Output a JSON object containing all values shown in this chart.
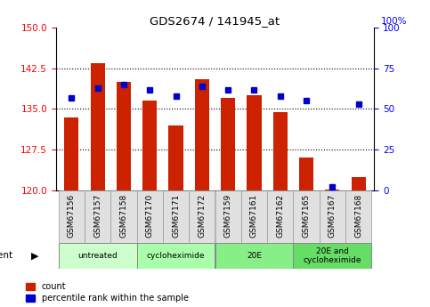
{
  "title": "GDS2674 / 141945_at",
  "samples": [
    "GSM67156",
    "GSM67157",
    "GSM67158",
    "GSM67170",
    "GSM67171",
    "GSM67172",
    "GSM67159",
    "GSM67161",
    "GSM67162",
    "GSM67165",
    "GSM67167",
    "GSM67168"
  ],
  "counts": [
    133.5,
    143.5,
    140.0,
    136.5,
    132.0,
    140.5,
    137.0,
    137.5,
    134.5,
    126.0,
    120.2,
    122.5
  ],
  "percentile": [
    57,
    63,
    65,
    62,
    58,
    64,
    62,
    62,
    58,
    55,
    2,
    53
  ],
  "y_min": 120,
  "y_max": 150,
  "y_ticks": [
    120,
    127.5,
    135,
    142.5,
    150
  ],
  "y2_ticks": [
    0,
    25,
    50,
    75,
    100
  ],
  "bar_color": "#cc2200",
  "dot_color": "#0000cc",
  "plot_bg": "#ffffff",
  "agent_groups": [
    {
      "label": "untreated",
      "start": 0,
      "end": 3,
      "color": "#ccffcc"
    },
    {
      "label": "cycloheximide",
      "start": 3,
      "end": 6,
      "color": "#aaffaa"
    },
    {
      "label": "20E",
      "start": 6,
      "end": 9,
      "color": "#88ee88"
    },
    {
      "label": "20E and\ncycloheximide",
      "start": 9,
      "end": 12,
      "color": "#66dd66"
    }
  ],
  "label_bg": "#e0e0e0",
  "label_edge": "#aaaaaa"
}
